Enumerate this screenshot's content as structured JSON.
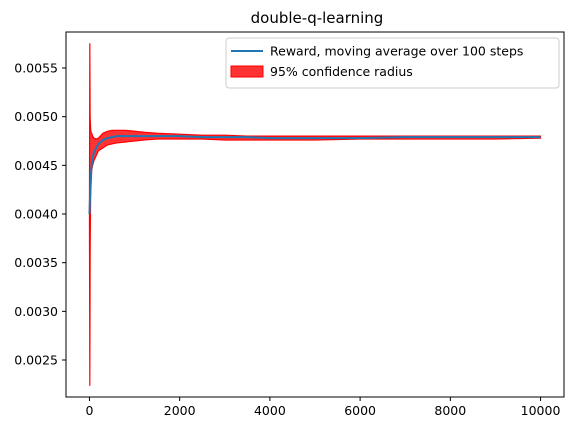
{
  "chart_data": {
    "type": "line",
    "title": "double-q-learning",
    "xlabel": "",
    "ylabel": "",
    "xlim": [
      -520,
      10520
    ],
    "ylim": [
      0.00212,
      0.00587
    ],
    "x_ticks": [
      0,
      2000,
      4000,
      6000,
      8000,
      10000
    ],
    "x_tick_labels": [
      "0",
      "2000",
      "4000",
      "6000",
      "8000",
      "10000"
    ],
    "y_ticks": [
      0.0025,
      0.003,
      0.0035,
      0.004,
      0.0045,
      0.005,
      0.0055
    ],
    "y_tick_labels": [
      "0.0025",
      "0.0030",
      "0.0035",
      "0.0040",
      "0.0045",
      "0.0050",
      "0.0055"
    ],
    "grid": false,
    "legend_position": "top-right",
    "series": [
      {
        "name": "Reward, moving average over 100 steps",
        "kind": "line",
        "color": "#1f77b4",
        "x": [
          0,
          30,
          60,
          100,
          150,
          200,
          300,
          400,
          500,
          600,
          800,
          1000,
          1200,
          1500,
          2000,
          2500,
          3000,
          3500,
          4000,
          5000,
          6000,
          7000,
          8000,
          9000,
          10000
        ],
        "y": [
          0.004,
          0.0044,
          0.00456,
          0.00463,
          0.00468,
          0.00472,
          0.00476,
          0.00478,
          0.00479,
          0.0048,
          0.0048,
          0.0048,
          0.0048,
          0.0048,
          0.0048,
          0.00479,
          0.00479,
          0.00479,
          0.00478,
          0.00478,
          0.00478,
          0.00479,
          0.00479,
          0.00479,
          0.00479
        ]
      },
      {
        "name": "95% confidence radius",
        "kind": "band",
        "color": "#ff0000",
        "opacity": 0.8,
        "x": [
          0,
          8,
          15,
          25,
          35,
          50,
          70,
          100,
          150,
          200,
          300,
          400,
          500,
          600,
          800,
          1000,
          1200,
          1500,
          2000,
          2500,
          3000,
          3500,
          4000,
          5000,
          6000,
          7000,
          8000,
          9000,
          10000
        ],
        "lower": [
          0.0039,
          0.00224,
          0.0036,
          0.00415,
          0.0043,
          0.00445,
          0.0045,
          0.00455,
          0.0046,
          0.00465,
          0.00468,
          0.00471,
          0.00472,
          0.00473,
          0.00474,
          0.00475,
          0.00476,
          0.00477,
          0.00477,
          0.00477,
          0.00476,
          0.00476,
          0.00476,
          0.00476,
          0.00477,
          0.00477,
          0.00477,
          0.00477,
          0.00478
        ],
        "upper": [
          0.0041,
          0.00575,
          0.005,
          0.00488,
          0.00484,
          0.00483,
          0.0048,
          0.00478,
          0.00477,
          0.00478,
          0.00483,
          0.00485,
          0.00486,
          0.00486,
          0.00486,
          0.00485,
          0.00484,
          0.00483,
          0.00482,
          0.00481,
          0.00481,
          0.0048,
          0.0048,
          0.0048,
          0.0048,
          0.0048,
          0.0048,
          0.0048,
          0.0048
        ]
      }
    ]
  }
}
